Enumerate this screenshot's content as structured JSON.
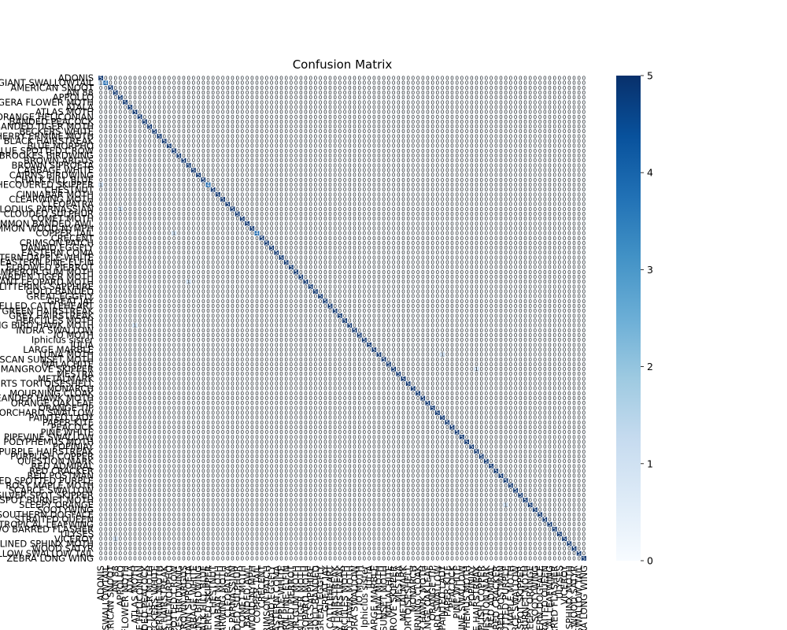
{
  "chart_data": {
    "type": "heatmap",
    "title": "Confusion Matrix",
    "xlabel": "",
    "ylabel": "",
    "labels": [
      "ADONIS",
      "AFRICAN GIANT SWALLOWTAIL",
      "AMERICAN SNOOT",
      "AN 88",
      "APPOLLO",
      "ARCIGERA FLOWER MOTH",
      "ATALA",
      "ATLAS MOTH",
      "BANDED ORANGE HELICONIAN",
      "BANDED PEACOCK",
      "BANDED TIGER MOTH",
      "BECKERS WHITE",
      "BIRD CHERRY ERMINE MOTH",
      "BLACK HAIRSTREAK",
      "BLUE MORPHO",
      "BLUE SPOTTED CROW",
      "BROOKES BIRDWING",
      "BROWN ARGUS",
      "BROWN SIPROETA",
      "CABBAGE WHITE",
      "CAIRNS BIRDWING",
      "CHALK HILL BLUE",
      "CHECQUERED SKIPPER",
      "CHESTNUT",
      "CINNABAR MOTH",
      "CLEARWING MOTH",
      "CLEOPATRA",
      "CLODIUS PARNASSIAN",
      "CLOUDED SULPHUR",
      "COMET MOTH",
      "COMMON BANDED AWL",
      "COMMON WOOD-NYMPH",
      "COPPER TAIL",
      "CRECENT",
      "CRIMSON PATCH",
      "DANAID EGGFLY",
      "EASTERN COMA",
      "EASTERN DAPPLE WHITE",
      "EASTERN PINE ELFIN",
      "ELBOWED PIERROT",
      "EMPEROR GUM MOTH",
      "GARDEN TIGER MOTH",
      "GIANT LEOPARD MOTH",
      "GLITTERING SAPPHIRE",
      "GOLD BANDED",
      "GREAT EGGFLY",
      "GREAT JAY",
      "GREEN CELLED CATTLEHEART",
      "GREEN HAIRSTREAK",
      "GREY HAIRSTREAK",
      "HERCULES MOTH",
      "HUMMING BIRD HAWK MOTH",
      "INDRA SWALLOW",
      "IO MOTH",
      "Iphiclus sister",
      "JULIA",
      "LARGE MARBLE",
      "LUNA MOTH",
      "MADAGASCAN SUNSET MOTH",
      "MALACHITE",
      "MANGROVE SKIPPER",
      "MESTRA",
      "METALMARK",
      "MILBERTS TORTOISESHELL",
      "MONARCH",
      "MOURNING CLOAK",
      "OLEANDER HAWK MOTH",
      "ORANGE OAKLEAF",
      "ORANGE TIP",
      "ORCHARD SWALLOW",
      "PAINTED LADY",
      "PAPER KITE",
      "PEACOCK",
      "PINE WHITE",
      "PIPEVINE SWALLOW",
      "POLYPHEMUS MOTH",
      "POPINJAY",
      "PURPLE HAIRSTREAK",
      "PURPLISH COPPER",
      "QUESTION MARK",
      "RED ADMIRAL",
      "RED CRACKER",
      "RED POSTMAN",
      "RED SPOTTED PURPLE",
      "ROSY MAPLE MOTH",
      "SCARCE SWALLOW",
      "SILVER SPOT SKIPPER",
      "SIXSPOT BURNET MOTH",
      "SLEEPY ORANGE",
      "SOOTYWING",
      "SOUTHERN DOGFACE",
      "STRAITED QUEEN",
      "TROPICAL LEAFWING",
      "TWO BARRED FLASHER",
      "ULYSES",
      "VICEROY",
      "WHITE LINED SPHINX MOTH",
      "WOOD SATYR",
      "YELLOW SWALLOW TAIL",
      "ZEBRA LONG WING"
    ],
    "diagonal": [
      5,
      4,
      5,
      5,
      5,
      5,
      5,
      5,
      5,
      5,
      5,
      5,
      5,
      5,
      5,
      5,
      5,
      5,
      5,
      5,
      5,
      5,
      4,
      5,
      5,
      5,
      5,
      5,
      5,
      5,
      5,
      5,
      4,
      5,
      5,
      5,
      5,
      5,
      5,
      5,
      5,
      5,
      5,
      5,
      5,
      5,
      5,
      5,
      5,
      5,
      5,
      5,
      5,
      5,
      5,
      5,
      5,
      5,
      5,
      5,
      5,
      5,
      5,
      5,
      5,
      5,
      5,
      5,
      5,
      5,
      5,
      5,
      5,
      5,
      5,
      5,
      5,
      5,
      5,
      5,
      5,
      5,
      5,
      5,
      5,
      5,
      5,
      5,
      5,
      5,
      5,
      5,
      5,
      5,
      5,
      5,
      5,
      5,
      5,
      5
    ],
    "off_diagonal": [
      {
        "row": 1,
        "col": 0,
        "value": 1
      },
      {
        "row": 22,
        "col": 0,
        "value": 1
      },
      {
        "row": 27,
        "col": 4,
        "value": 1
      },
      {
        "row": 32,
        "col": 15,
        "value": 1
      },
      {
        "row": 42,
        "col": 18,
        "value": 1
      },
      {
        "row": 51,
        "col": 7,
        "value": 1
      },
      {
        "row": 57,
        "col": 70,
        "value": 1
      },
      {
        "row": 60,
        "col": 77,
        "value": 1
      },
      {
        "row": 88,
        "col": 83,
        "value": 1
      },
      {
        "row": 95,
        "col": 3,
        "value": 1
      }
    ],
    "vmin": 0,
    "vmax": 5,
    "colorbar_ticks": [
      0,
      1,
      2,
      3,
      4,
      5
    ],
    "colormap": [
      "#f7fbff",
      "#deebf7",
      "#c6dbef",
      "#9ecae1",
      "#6baed6",
      "#4292c6",
      "#2171b5",
      "#08519c",
      "#08306b"
    ]
  }
}
